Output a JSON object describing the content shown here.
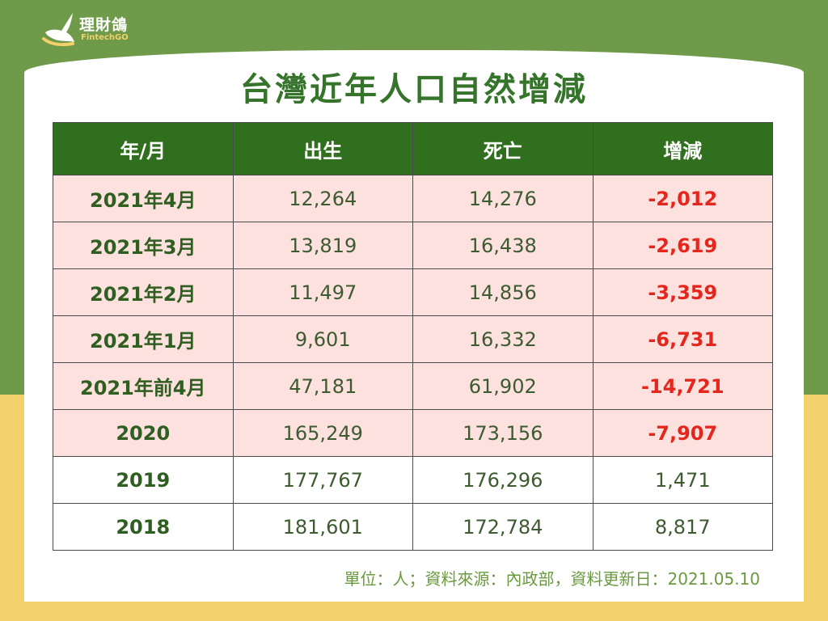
{
  "brand": {
    "name": "理財鴿",
    "sub": "FintechGO",
    "colors": {
      "dark_green": "#306f1e",
      "light_green": "#6f9a4a",
      "yellow": "#f2d06b",
      "pink": "#fde1df",
      "red": "#e5261c"
    }
  },
  "title": "台灣近年人口自然增減",
  "table": {
    "headers": [
      "年/月",
      "出生",
      "死亡",
      "增減"
    ],
    "rows": [
      {
        "period": "2021年4月",
        "births": "12,264",
        "deaths": "14,276",
        "change": "-2,012",
        "highlight": true
      },
      {
        "period": "2021年3月",
        "births": "13,819",
        "deaths": "16,438",
        "change": "-2,619",
        "highlight": true
      },
      {
        "period": "2021年2月",
        "births": "11,497",
        "deaths": "14,856",
        "change": "-3,359",
        "highlight": true
      },
      {
        "period": "2021年1月",
        "births": "9,601",
        "deaths": "16,332",
        "change": "-6,731",
        "highlight": true
      },
      {
        "period": "2021年前4月",
        "births": "47,181",
        "deaths": "61,902",
        "change": "-14,721",
        "highlight": true
      },
      {
        "period": "2020",
        "births": "165,249",
        "deaths": "173,156",
        "change": "-7,907",
        "highlight": true
      },
      {
        "period": "2019",
        "births": "177,767",
        "deaths": "176,296",
        "change": "1,471",
        "highlight": false
      },
      {
        "period": "2018",
        "births": "181,601",
        "deaths": "172,784",
        "change": "8,817",
        "highlight": false
      }
    ]
  },
  "footnote": "單位：人；資料來源：內政部，資料更新日：2021.05.10"
}
